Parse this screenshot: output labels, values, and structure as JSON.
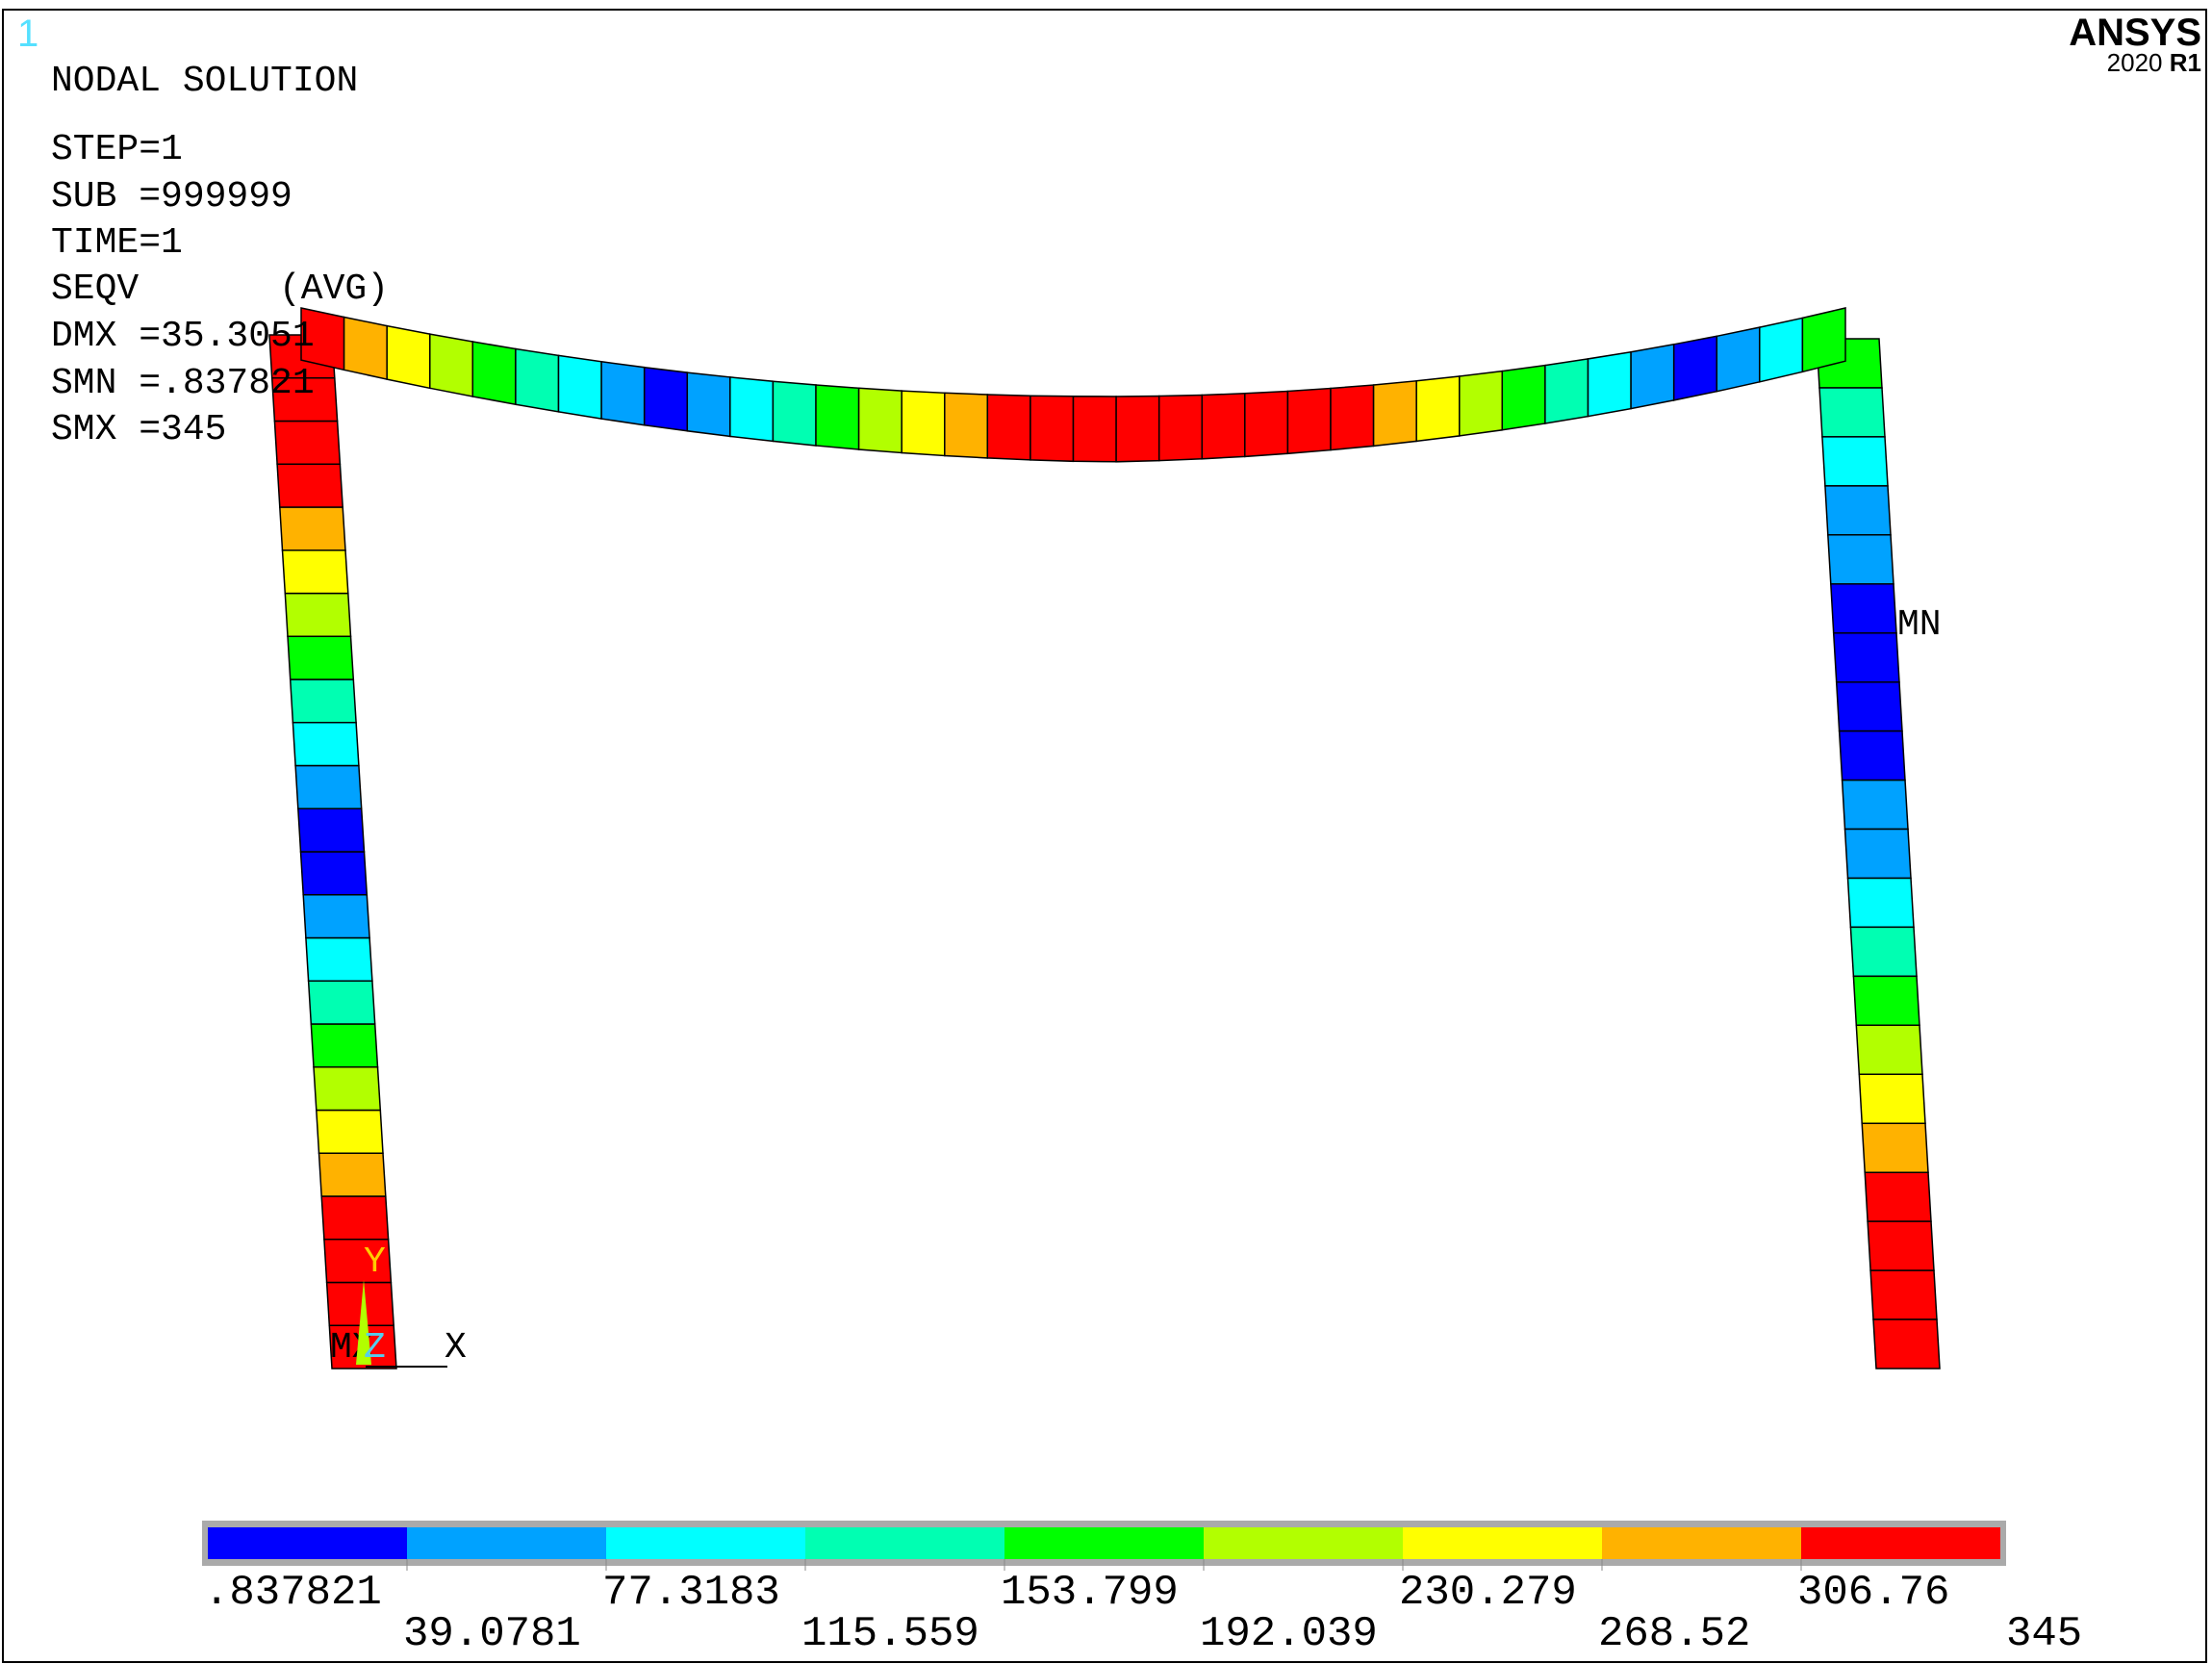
{
  "window_number": "1",
  "brand": {
    "name": "ANSYS",
    "version_prefix": "2020",
    "version_suffix": "R1"
  },
  "header": {
    "title": "NODAL SOLUTION",
    "step": "STEP=1",
    "sub": "SUB =999999",
    "time": "TIME=1",
    "seqv": "SEQV",
    "avg": "(AVG)",
    "dmx": "DMX =35.3051",
    "smn": "SMN =.837821",
    "smx": "SMX =345"
  },
  "markers": {
    "min_label": "MN",
    "max_label": "MX"
  },
  "triad": {
    "y": "Y",
    "z": "Z",
    "x": "X"
  },
  "legend": {
    "colors": [
      "#0000ff",
      "#00a2ff",
      "#00ffff",
      "#00ffb2",
      "#00ff00",
      "#b2ff00",
      "#ffff00",
      "#ffb200",
      "#ff0000"
    ],
    "labels": [
      ".837821",
      "39.0781",
      "77.3183",
      "115.559",
      "153.799",
      "192.039",
      "230.279",
      "268.52",
      "306.76",
      "345"
    ]
  },
  "colors": {
    "frame": "#000000",
    "window_number": "#55e0ff",
    "triad": "#ffcc00"
  },
  "diagram": {
    "left_column_colors": [
      "#ff0000",
      "#ff0000",
      "#ff0000",
      "#ff0000",
      "#ffb200",
      "#ffff00",
      "#b2ff00",
      "#00ff00",
      "#00ffb2",
      "#00ffff",
      "#00a2ff",
      "#0000ff",
      "#0000ff",
      "#00a2ff",
      "#00ffff",
      "#00ffb2",
      "#00ff00",
      "#b2ff00",
      "#ffff00",
      "#ffb200",
      "#ff0000",
      "#ff0000",
      "#ff0000",
      "#ff0000"
    ],
    "beam_colors": [
      "#ff0000",
      "#ffb200",
      "#ffff00",
      "#b2ff00",
      "#00ff00",
      "#00ffb2",
      "#00ffff",
      "#00a2ff",
      "#0000ff",
      "#00a2ff",
      "#00ffff",
      "#00ffb2",
      "#00ff00",
      "#b2ff00",
      "#ffff00",
      "#ffb200",
      "#ff0000",
      "#ff0000",
      "#ff0000",
      "#ff0000",
      "#ff0000",
      "#ff0000",
      "#ff0000",
      "#ff0000",
      "#ff0000",
      "#ffb200",
      "#ffff00",
      "#b2ff00",
      "#00ff00",
      "#00ffb2",
      "#00ffff",
      "#00a2ff",
      "#0000ff",
      "#00a2ff",
      "#00ffff",
      "#00ff00"
    ],
    "right_column_colors": [
      "#00ff00",
      "#00ffb2",
      "#00ffff",
      "#00a2ff",
      "#00a2ff",
      "#0000ff",
      "#0000ff",
      "#0000ff",
      "#0000ff",
      "#00a2ff",
      "#00a2ff",
      "#00ffff",
      "#00ffb2",
      "#00ff00",
      "#b2ff00",
      "#ffff00",
      "#ffb200",
      "#ff0000",
      "#ff0000",
      "#ff0000",
      "#ff0000"
    ]
  }
}
